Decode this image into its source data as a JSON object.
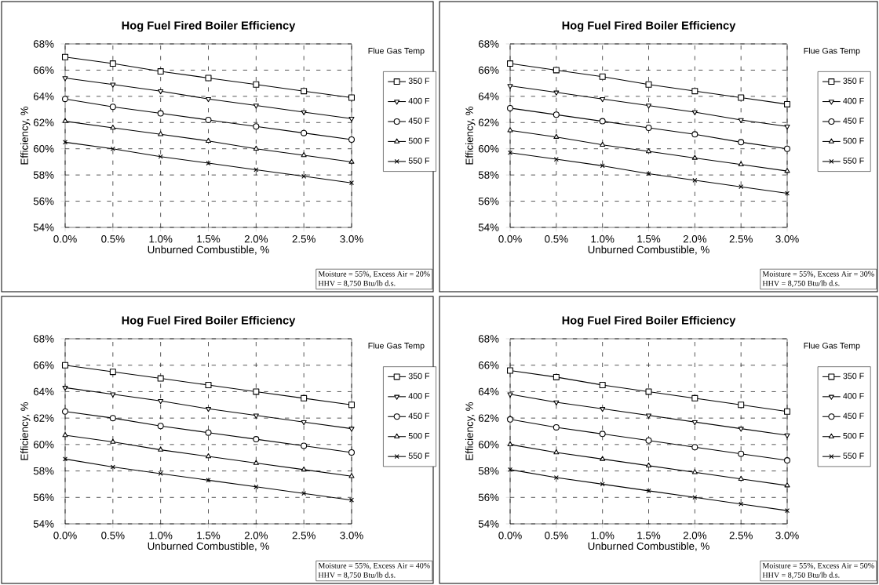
{
  "chart_data": [
    {
      "type": "line",
      "title": "Hog Fuel Fired Boiler Efficiency",
      "xlabel": "Unburned Combustible, %",
      "ylabel": "Efficiency, %",
      "legend_title": "Flue Gas Temp",
      "legend": "right",
      "grid": true,
      "line_style": "solid",
      "x": [
        0,
        0.5,
        1,
        1.5,
        2,
        2.5,
        3
      ],
      "xlim": [
        0,
        3
      ],
      "ylim": [
        54,
        68
      ],
      "xticks": [
        {
          "value": 0,
          "label": "0.0%"
        },
        {
          "value": 0.5,
          "label": "0.5%"
        },
        {
          "value": 1,
          "label": "1.0%"
        },
        {
          "value": 1.5,
          "label": "1.5%"
        },
        {
          "value": 2,
          "label": "2.0%"
        },
        {
          "value": 2.5,
          "label": "2.5%"
        },
        {
          "value": 3,
          "label": "3.0%"
        }
      ],
      "yticks": [
        {
          "value": 54,
          "label": "54%"
        },
        {
          "value": 56,
          "label": "56%"
        },
        {
          "value": 58,
          "label": "58%"
        },
        {
          "value": 60,
          "label": "60%"
        },
        {
          "value": 62,
          "label": "62%"
        },
        {
          "value": 64,
          "label": "64%"
        },
        {
          "value": 66,
          "label": "66%"
        },
        {
          "value": 68,
          "label": "68%"
        }
      ],
      "annotations": [
        "Moisture = 55%, Excess Air = 20%",
        "HHV = 8,750 Btu/lb d.s."
      ],
      "series": [
        {
          "name": "350 F",
          "color": "#000000",
          "marker": "square",
          "values": [
            67.0,
            66.5,
            65.9,
            65.4,
            64.9,
            64.4,
            63.9
          ]
        },
        {
          "name": "400 F",
          "color": "#000000",
          "marker": "triangle down",
          "values": [
            65.4,
            64.9,
            64.4,
            63.8,
            63.3,
            62.8,
            62.3
          ]
        },
        {
          "name": "450 F",
          "color": "#000000",
          "marker": "circle",
          "values": [
            63.8,
            63.2,
            62.7,
            62.2,
            61.7,
            61.2,
            60.7
          ]
        },
        {
          "name": "500 F",
          "color": "#000000",
          "marker": "triangle",
          "values": [
            62.1,
            61.6,
            61.1,
            60.6,
            60.0,
            59.5,
            59.0
          ]
        },
        {
          "name": "550 F",
          "color": "#000000",
          "marker": "cross",
          "values": [
            60.5,
            60.0,
            59.4,
            58.9,
            58.4,
            57.9,
            57.4
          ]
        }
      ]
    },
    {
      "type": "line",
      "title": "Hog Fuel Fired Boiler Efficiency",
      "xlabel": "Unburned Combustible, %",
      "ylabel": "Efficiency, %",
      "legend_title": "Flue Gas Temp",
      "legend": "right",
      "grid": true,
      "line_style": "solid",
      "x": [
        0,
        0.5,
        1,
        1.5,
        2,
        2.5,
        3
      ],
      "xlim": [
        0,
        3
      ],
      "ylim": [
        54,
        68
      ],
      "xticks": [
        {
          "value": 0,
          "label": "0.0%"
        },
        {
          "value": 0.5,
          "label": "0.5%"
        },
        {
          "value": 1,
          "label": "1.0%"
        },
        {
          "value": 1.5,
          "label": "1.5%"
        },
        {
          "value": 2,
          "label": "2.0%"
        },
        {
          "value": 2.5,
          "label": "2.5%"
        },
        {
          "value": 3,
          "label": "3.0%"
        }
      ],
      "yticks": [
        {
          "value": 54,
          "label": "54%"
        },
        {
          "value": 56,
          "label": "56%"
        },
        {
          "value": 58,
          "label": "58%"
        },
        {
          "value": 60,
          "label": "60%"
        },
        {
          "value": 62,
          "label": "62%"
        },
        {
          "value": 64,
          "label": "64%"
        },
        {
          "value": 66,
          "label": "66%"
        },
        {
          "value": 68,
          "label": "68%"
        }
      ],
      "annotations": [
        "Moisture = 55%, Excess Air = 30%",
        "HHV = 8,750 Btu/lb d.s."
      ],
      "series": [
        {
          "name": "350 F",
          "color": "#000000",
          "marker": "square",
          "values": [
            66.5,
            66.0,
            65.5,
            64.9,
            64.4,
            63.9,
            63.4
          ]
        },
        {
          "name": "400 F",
          "color": "#000000",
          "marker": "triangle down",
          "values": [
            64.8,
            64.3,
            63.8,
            63.3,
            62.8,
            62.2,
            61.7
          ]
        },
        {
          "name": "450 F",
          "color": "#000000",
          "marker": "circle",
          "values": [
            63.1,
            62.6,
            62.1,
            61.6,
            61.1,
            60.5,
            60.0
          ]
        },
        {
          "name": "500 F",
          "color": "#000000",
          "marker": "triangle",
          "values": [
            61.4,
            60.9,
            60.3,
            59.8,
            59.3,
            58.8,
            58.3
          ]
        },
        {
          "name": "550 F",
          "color": "#000000",
          "marker": "cross",
          "values": [
            59.7,
            59.2,
            58.7,
            58.1,
            57.6,
            57.1,
            56.6
          ]
        }
      ]
    },
    {
      "type": "line",
      "title": "Hog Fuel Fired Boiler Efficiency",
      "xlabel": "Unburned Combustible, %",
      "ylabel": "Efficiency, %",
      "legend_title": "Flue Gas Temp",
      "legend": "right",
      "grid": true,
      "line_style": "solid",
      "x": [
        0,
        0.5,
        1,
        1.5,
        2,
        2.5,
        3
      ],
      "xlim": [
        0,
        3
      ],
      "ylim": [
        54,
        68
      ],
      "xticks": [
        {
          "value": 0,
          "label": "0.0%"
        },
        {
          "value": 0.5,
          "label": "0.5%"
        },
        {
          "value": 1,
          "label": "1.0%"
        },
        {
          "value": 1.5,
          "label": "1.5%"
        },
        {
          "value": 2,
          "label": "2.0%"
        },
        {
          "value": 2.5,
          "label": "2.5%"
        },
        {
          "value": 3,
          "label": "3.0%"
        }
      ],
      "yticks": [
        {
          "value": 54,
          "label": "54%"
        },
        {
          "value": 56,
          "label": "56%"
        },
        {
          "value": 58,
          "label": "58%"
        },
        {
          "value": 60,
          "label": "60%"
        },
        {
          "value": 62,
          "label": "62%"
        },
        {
          "value": 64,
          "label": "64%"
        },
        {
          "value": 66,
          "label": "66%"
        },
        {
          "value": 68,
          "label": "68%"
        }
      ],
      "annotations": [
        "Moisture = 55%, Excess Air = 40%",
        "HHV = 8,750 Btu/lb d.s."
      ],
      "series": [
        {
          "name": "350 F",
          "color": "#000000",
          "marker": "square",
          "values": [
            66.0,
            65.5,
            65.0,
            64.5,
            64.0,
            63.5,
            63.0
          ]
        },
        {
          "name": "400 F",
          "color": "#000000",
          "marker": "triangle down",
          "values": [
            64.3,
            63.8,
            63.3,
            62.7,
            62.2,
            61.7,
            61.2
          ]
        },
        {
          "name": "450 F",
          "color": "#000000",
          "marker": "circle",
          "values": [
            62.5,
            62.0,
            61.4,
            60.9,
            60.4,
            59.9,
            59.4
          ]
        },
        {
          "name": "500 F",
          "color": "#000000",
          "marker": "triangle",
          "values": [
            60.7,
            60.2,
            59.6,
            59.1,
            58.6,
            58.1,
            57.6
          ]
        },
        {
          "name": "550 F",
          "color": "#000000",
          "marker": "cross",
          "values": [
            58.9,
            58.3,
            57.8,
            57.3,
            56.8,
            56.3,
            55.8
          ]
        }
      ]
    },
    {
      "type": "line",
      "title": "Hog Fuel Fired Boiler Efficiency",
      "xlabel": "Unburned Combustible, %",
      "ylabel": "Efficiency, %",
      "legend_title": "Flue Gas Temp",
      "legend": "right",
      "grid": true,
      "line_style": "solid",
      "x": [
        0,
        0.5,
        1,
        1.5,
        2,
        2.5,
        3
      ],
      "xlim": [
        0,
        3
      ],
      "ylim": [
        54,
        68
      ],
      "xticks": [
        {
          "value": 0,
          "label": "0.0%"
        },
        {
          "value": 0.5,
          "label": "0.5%"
        },
        {
          "value": 1,
          "label": "1.0%"
        },
        {
          "value": 1.5,
          "label": "1.5%"
        },
        {
          "value": 2,
          "label": "2.0%"
        },
        {
          "value": 2.5,
          "label": "2.5%"
        },
        {
          "value": 3,
          "label": "3.0%"
        }
      ],
      "yticks": [
        {
          "value": 54,
          "label": "54%"
        },
        {
          "value": 56,
          "label": "56%"
        },
        {
          "value": 58,
          "label": "58%"
        },
        {
          "value": 60,
          "label": "60%"
        },
        {
          "value": 62,
          "label": "62%"
        },
        {
          "value": 64,
          "label": "64%"
        },
        {
          "value": 66,
          "label": "66%"
        },
        {
          "value": 68,
          "label": "68%"
        }
      ],
      "annotations": [
        "Moisture = 55%, Excess Air = 50%",
        "HHV = 8,750 Btu/lb d.s."
      ],
      "series": [
        {
          "name": "350 F",
          "color": "#000000",
          "marker": "square",
          "values": [
            65.6,
            65.1,
            64.5,
            64.0,
            63.5,
            63.0,
            62.5
          ]
        },
        {
          "name": "400 F",
          "color": "#000000",
          "marker": "triangle down",
          "values": [
            63.8,
            63.2,
            62.7,
            62.2,
            61.7,
            61.2,
            60.7
          ]
        },
        {
          "name": "450 F",
          "color": "#000000",
          "marker": "circle",
          "values": [
            61.9,
            61.3,
            60.8,
            60.3,
            59.8,
            59.3,
            58.8
          ]
        },
        {
          "name": "500 F",
          "color": "#000000",
          "marker": "triangle",
          "values": [
            60.0,
            59.4,
            58.9,
            58.4,
            57.9,
            57.4,
            56.9
          ]
        },
        {
          "name": "550 F",
          "color": "#000000",
          "marker": "cross",
          "values": [
            58.1,
            57.5,
            57.0,
            56.5,
            56.0,
            55.5,
            55.0
          ]
        }
      ]
    }
  ]
}
